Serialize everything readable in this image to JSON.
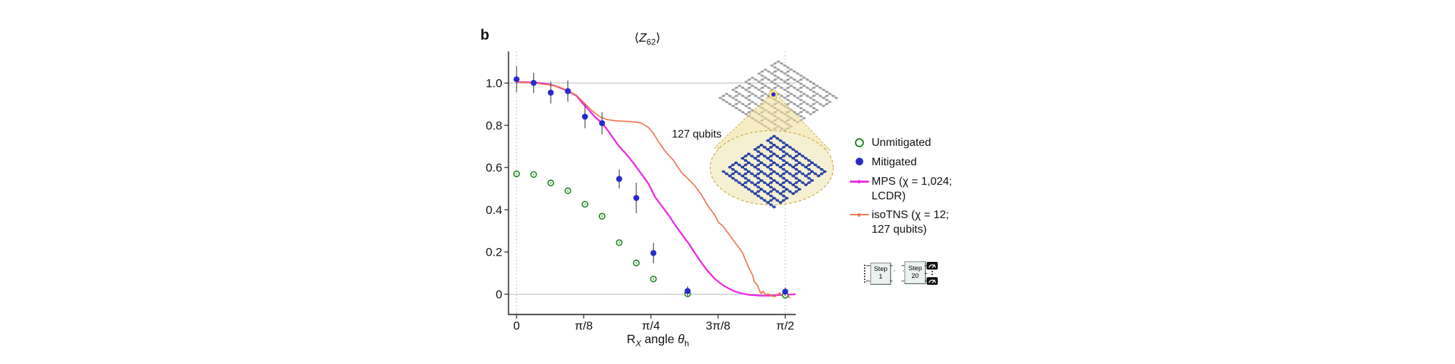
{
  "figure": {
    "panel_label": "b",
    "title_parts": {
      "open": "⟨",
      "symbol": "Z",
      "subscript": "62",
      "close": "⟩"
    },
    "annotation_qubits": "127 qubits"
  },
  "chart_data": {
    "type": "line+scatter",
    "title": "⟨Z62⟩",
    "xlabel": "RX angle θh",
    "xlabel_parts": {
      "r": "R",
      "r_sub": "X",
      "middle": " angle ",
      "theta": "θ",
      "theta_sub": "h"
    },
    "x_axis": {
      "tick_positions_rad": [
        0,
        0.3927,
        0.7854,
        1.1781,
        1.5708
      ],
      "tick_labels": [
        "0",
        "π/8",
        "π/4",
        "3π/8",
        "π/2"
      ],
      "range_rad": [
        -0.047,
        1.632
      ]
    },
    "y_axis": {
      "tick_positions": [
        0,
        0.2,
        0.4,
        0.6,
        0.8,
        1.0
      ],
      "tick_labels": [
        "0",
        "0.2",
        "0.4",
        "0.6",
        "0.8",
        "1.0"
      ],
      "range": [
        -0.096,
        1.15
      ]
    },
    "gridlines_y": [
      0,
      1.0
    ],
    "dashed_vlines_rad": [
      0,
      1.5708
    ],
    "series": [
      {
        "name": "Unmitigated",
        "type": "scatter-open",
        "color": "#268826",
        "x": [
          0,
          0.1,
          0.2,
          0.3,
          0.4,
          0.5,
          0.6,
          0.7,
          0.8,
          1.0,
          1.5708
        ],
        "y": [
          0.57,
          0.567,
          0.527,
          0.49,
          0.426,
          0.369,
          0.244,
          0.148,
          0.072,
          0.002,
          -0.005
        ],
        "err": [
          0.015,
          0.015,
          0.015,
          0.015,
          0.015,
          0.015,
          0.015,
          0.015,
          0.012,
          0.01,
          0.01
        ]
      },
      {
        "name": "Mitigated",
        "type": "scatter-filled",
        "color": "#2A2ACC",
        "x": [
          0,
          0.1,
          0.2,
          0.3,
          0.4,
          0.5,
          0.6,
          0.7,
          0.8,
          1.0,
          1.5708
        ],
        "y": [
          1.018,
          1.001,
          0.955,
          0.962,
          0.841,
          0.81,
          0.546,
          0.456,
          0.195,
          0.015,
          0.012
        ],
        "err": [
          0.062,
          0.048,
          0.052,
          0.05,
          0.055,
          0.052,
          0.045,
          0.072,
          0.048,
          0.022,
          0.02
        ]
      },
      {
        "name": "MPS (χ = 1,024; LCDR)",
        "type": "line",
        "color": "#EE28E6",
        "width": 2.4,
        "points": [
          [
            0,
            1.005
          ],
          [
            0.1,
            1.003
          ],
          [
            0.16,
            0.998
          ],
          [
            0.22,
            0.988
          ],
          [
            0.26,
            0.976
          ],
          [
            0.3,
            0.963
          ],
          [
            0.35,
            0.94
          ],
          [
            0.38,
            0.91
          ],
          [
            0.42,
            0.875
          ],
          [
            0.46,
            0.838
          ],
          [
            0.5,
            0.81
          ],
          [
            0.53,
            0.78
          ],
          [
            0.56,
            0.745
          ],
          [
            0.6,
            0.7
          ],
          [
            0.64,
            0.665
          ],
          [
            0.68,
            0.625
          ],
          [
            0.72,
            0.58
          ],
          [
            0.77,
            0.525
          ],
          [
            0.81,
            0.46
          ],
          [
            0.85,
            0.417
          ],
          [
            0.89,
            0.373
          ],
          [
            0.93,
            0.324
          ],
          [
            0.97,
            0.28
          ],
          [
            1.01,
            0.236
          ],
          [
            1.04,
            0.198
          ],
          [
            1.08,
            0.15
          ],
          [
            1.12,
            0.107
          ],
          [
            1.16,
            0.072
          ],
          [
            1.2,
            0.046
          ],
          [
            1.24,
            0.027
          ],
          [
            1.28,
            0.012
          ],
          [
            1.32,
            0.003
          ],
          [
            1.36,
            -0.003
          ],
          [
            1.42,
            -0.007
          ],
          [
            1.48,
            -0.007
          ],
          [
            1.54,
            -0.004
          ],
          [
            1.6,
            -0.002
          ],
          [
            1.63,
            0.0
          ]
        ]
      },
      {
        "name": "isoTNS (χ = 12; 127 qubits)",
        "type": "line",
        "color": "#F0724D",
        "width": 1.7,
        "points": [
          [
            0,
            1.005
          ],
          [
            0.09,
            1.001
          ],
          [
            0.2,
            0.991
          ],
          [
            0.26,
            0.978
          ],
          [
            0.3,
            0.965
          ],
          [
            0.35,
            0.942
          ],
          [
            0.4,
            0.902
          ],
          [
            0.45,
            0.863
          ],
          [
            0.49,
            0.839
          ],
          [
            0.53,
            0.827
          ],
          [
            0.58,
            0.821
          ],
          [
            0.64,
            0.819
          ],
          [
            0.69,
            0.816
          ],
          [
            0.73,
            0.81
          ],
          [
            0.77,
            0.79
          ],
          [
            0.8,
            0.762
          ],
          [
            0.83,
            0.722
          ],
          [
            0.87,
            0.676
          ],
          [
            0.92,
            0.631
          ],
          [
            0.94,
            0.604
          ],
          [
            0.97,
            0.571
          ],
          [
            1.0,
            0.549
          ],
          [
            1.04,
            0.516
          ],
          [
            1.08,
            0.472
          ],
          [
            1.12,
            0.417
          ],
          [
            1.16,
            0.373
          ],
          [
            1.18,
            0.341
          ],
          [
            1.21,
            0.319
          ],
          [
            1.24,
            0.286
          ],
          [
            1.27,
            0.253
          ],
          [
            1.3,
            0.22
          ],
          [
            1.32,
            0.198
          ],
          [
            1.34,
            0.16
          ],
          [
            1.36,
            0.12
          ],
          [
            1.38,
            0.09
          ],
          [
            1.39,
            0.06
          ],
          [
            1.41,
            0.04
          ],
          [
            1.42,
            0.017
          ],
          [
            1.43,
            0.003
          ],
          [
            1.44,
            0.014
          ],
          [
            1.46,
            -0.005
          ],
          [
            1.47,
            0.002
          ],
          [
            1.49,
            -0.008
          ],
          [
            1.51,
            -0.012
          ],
          [
            1.53,
            0.0
          ],
          [
            1.54,
            0.006
          ],
          [
            1.55,
            -0.005
          ],
          [
            1.57,
            0.0
          ],
          [
            1.58,
            -0.008
          ],
          [
            1.6,
            -0.017
          ]
        ]
      }
    ]
  },
  "legend": {
    "items": [
      {
        "label": "Unmitigated"
      },
      {
        "label": "Mitigated"
      },
      {
        "label": "MPS (χ = 1,024;\nLCDR)"
      },
      {
        "label": "isoTNS (χ = 12;\n127 qubits)"
      }
    ]
  },
  "circuit": {
    "box1": {
      "line1": "Step",
      "line2": "1"
    },
    "box2": {
      "line1": "Step",
      "line2": "20"
    },
    "ellipsis": "· ·"
  },
  "art_colors": {
    "gray_lattice_dot": "#9B9B9E",
    "gray_lattice_line": "#ACACAF",
    "blue_lattice_dot": "#2B4BB5",
    "blue_lattice_line": "#1B286E",
    "magnifier_fill": "#F6F0D2",
    "magnifier_border": "#C9A845",
    "cone_fill": "rgba(240,222,150,0.55)"
  }
}
